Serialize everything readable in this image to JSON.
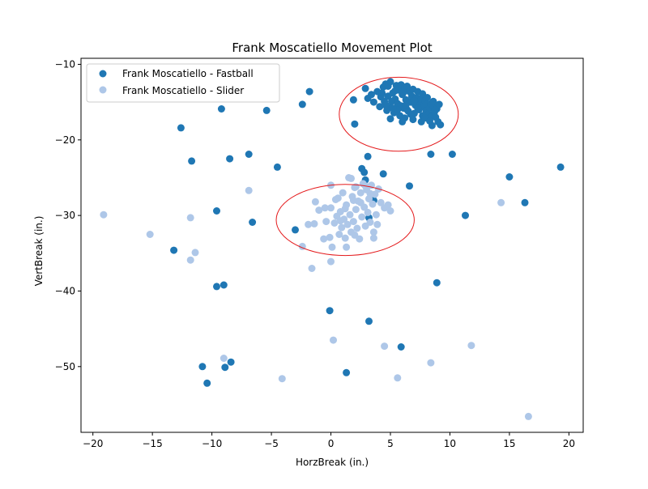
{
  "chart_data": {
    "type": "scatter",
    "title": "Frank Moscatiello Movement Plot",
    "xlabel": "HorzBreak (in.)",
    "ylabel": "VertBreak (in.)",
    "xlim": [
      -21,
      21.2
    ],
    "ylim": [
      -58.7,
      -9.2
    ],
    "xticks": [
      -20,
      -15,
      -10,
      -5,
      0,
      5,
      10,
      15,
      20
    ],
    "yticks": [
      -10,
      -20,
      -30,
      -40,
      -50
    ],
    "grid": false,
    "legend_position": "upper-left",
    "colors": {
      "fastball": "#1f77b4",
      "slider": "#aec7e8",
      "ellipse": "#e41a1c"
    },
    "series": [
      {
        "name": "Frank Moscatiello - Fastball",
        "color": "#1f77b4",
        "points": [
          [
            -9.2,
            -15.9
          ],
          [
            -12.6,
            -18.4
          ],
          [
            -11.7,
            -22.8
          ],
          [
            -5.4,
            -16.1
          ],
          [
            -2.4,
            -15.3
          ],
          [
            -1.8,
            -13.6
          ],
          [
            -8.5,
            -22.5
          ],
          [
            -6.9,
            -21.9
          ],
          [
            -4.5,
            -23.6
          ],
          [
            -9.6,
            -29.4
          ],
          [
            -6.6,
            -30.9
          ],
          [
            -3.0,
            -31.9
          ],
          [
            -13.2,
            -34.6
          ],
          [
            -9.6,
            -39.4
          ],
          [
            -9.0,
            -39.2
          ],
          [
            -0.1,
            -42.6
          ],
          [
            3.2,
            -44.0
          ],
          [
            -10.8,
            -50.0
          ],
          [
            -10.4,
            -52.2
          ],
          [
            -8.9,
            -50.1
          ],
          [
            -8.4,
            -49.4
          ],
          [
            1.3,
            -50.8
          ],
          [
            5.9,
            -47.4
          ],
          [
            8.9,
            -38.9
          ],
          [
            11.3,
            -30.0
          ],
          [
            16.3,
            -28.3
          ],
          [
            15.0,
            -24.9
          ],
          [
            19.3,
            -23.6
          ],
          [
            10.2,
            -21.9
          ],
          [
            8.4,
            -21.9
          ],
          [
            6.6,
            -26.1
          ],
          [
            4.4,
            -24.5
          ],
          [
            3.1,
            -22.2
          ],
          [
            2.6,
            -23.8
          ],
          [
            2.8,
            -24.3
          ],
          [
            2.9,
            -25.3
          ],
          [
            3.6,
            -28.0
          ],
          [
            3.2,
            -30.3
          ],
          [
            1.9,
            -14.7
          ],
          [
            2.0,
            -17.9
          ],
          [
            2.9,
            -13.2
          ],
          [
            3.1,
            -14.5
          ],
          [
            3.6,
            -15.0
          ],
          [
            3.9,
            -13.6
          ],
          [
            4.2,
            -14.3
          ],
          [
            4.4,
            -13.0
          ],
          [
            4.6,
            -12.6
          ],
          [
            4.8,
            -12.9
          ],
          [
            5.0,
            -12.3
          ],
          [
            5.2,
            -13.8
          ],
          [
            5.4,
            -14.6
          ],
          [
            5.5,
            -12.8
          ],
          [
            5.6,
            -15.2
          ],
          [
            5.7,
            -13.4
          ],
          [
            5.9,
            -12.7
          ],
          [
            6.0,
            -14.0
          ],
          [
            6.1,
            -15.8
          ],
          [
            6.2,
            -13.1
          ],
          [
            6.3,
            -14.7
          ],
          [
            6.4,
            -12.9
          ],
          [
            6.5,
            -16.2
          ],
          [
            6.6,
            -13.6
          ],
          [
            6.7,
            -15.0
          ],
          [
            6.8,
            -14.2
          ],
          [
            6.9,
            -13.3
          ],
          [
            7.0,
            -16.5
          ],
          [
            7.1,
            -15.4
          ],
          [
            7.2,
            -14.4
          ],
          [
            7.3,
            -13.6
          ],
          [
            7.4,
            -16.0
          ],
          [
            7.5,
            -15.1
          ],
          [
            7.6,
            -14.6
          ],
          [
            7.7,
            -16.8
          ],
          [
            7.8,
            -15.6
          ],
          [
            7.9,
            -14.8
          ],
          [
            8.0,
            -16.2
          ],
          [
            8.1,
            -15.3
          ],
          [
            8.2,
            -16.6
          ],
          [
            8.3,
            -15.8
          ],
          [
            8.4,
            -15.2
          ],
          [
            8.5,
            -16.9
          ],
          [
            8.6,
            -15.5
          ],
          [
            8.7,
            -16.3
          ],
          [
            8.8,
            -17.0
          ],
          [
            8.9,
            -15.9
          ],
          [
            9.0,
            -17.6
          ],
          [
            9.1,
            -15.3
          ],
          [
            9.2,
            -18.0
          ],
          [
            8.5,
            -18.1
          ],
          [
            5.3,
            -16.4
          ],
          [
            4.9,
            -15.7
          ],
          [
            4.5,
            -14.9
          ],
          [
            5.8,
            -16.8
          ],
          [
            6.2,
            -17.1
          ],
          [
            5.0,
            -17.2
          ],
          [
            4.7,
            -16.1
          ],
          [
            6.9,
            -17.3
          ],
          [
            7.6,
            -17.6
          ],
          [
            4.1,
            -15.6
          ],
          [
            3.4,
            -14.0
          ],
          [
            5.1,
            -14.9
          ],
          [
            5.9,
            -15.5
          ],
          [
            6.4,
            -16.0
          ],
          [
            7.0,
            -14.8
          ],
          [
            6.1,
            -13.7
          ],
          [
            5.4,
            -13.5
          ],
          [
            4.3,
            -13.8
          ],
          [
            7.7,
            -13.9
          ],
          [
            8.1,
            -14.4
          ],
          [
            8.6,
            -14.9
          ],
          [
            7.3,
            -15.8
          ],
          [
            6.7,
            -16.6
          ],
          [
            4.8,
            -14.2
          ],
          [
            5.6,
            -16.0
          ],
          [
            6.3,
            -15.4
          ],
          [
            7.9,
            -17.1
          ],
          [
            8.3,
            -17.5
          ],
          [
            6.0,
            -17.6
          ],
          [
            5.2,
            -15.8
          ],
          [
            4.6,
            -15.4
          ]
        ]
      },
      {
        "name": "Frank Moscatiello - Slider",
        "color": "#aec7e8",
        "points": [
          [
            -19.1,
            -29.9
          ],
          [
            -15.2,
            -32.5
          ],
          [
            -11.8,
            -30.3
          ],
          [
            -11.8,
            -35.9
          ],
          [
            -11.4,
            -34.9
          ],
          [
            -6.9,
            -26.7
          ],
          [
            -2.4,
            -34.1
          ],
          [
            -1.6,
            -37.0
          ],
          [
            -9.0,
            -48.9
          ],
          [
            -4.1,
            -51.6
          ],
          [
            0.2,
            -46.5
          ],
          [
            0.0,
            -36.1
          ],
          [
            4.5,
            -47.3
          ],
          [
            5.6,
            -51.5
          ],
          [
            8.4,
            -49.5
          ],
          [
            11.8,
            -47.2
          ],
          [
            14.3,
            -28.3
          ],
          [
            16.6,
            -56.6
          ],
          [
            -1.9,
            -31.2
          ],
          [
            -1.4,
            -31.1
          ],
          [
            -1.3,
            -28.2
          ],
          [
            -1.0,
            -29.3
          ],
          [
            -0.6,
            -33.1
          ],
          [
            -0.4,
            -30.8
          ],
          [
            -0.1,
            -32.9
          ],
          [
            0.0,
            -26.0
          ],
          [
            0.0,
            -29.0
          ],
          [
            0.1,
            -34.2
          ],
          [
            0.3,
            -31.0
          ],
          [
            0.5,
            -30.1
          ],
          [
            0.6,
            -27.7
          ],
          [
            0.7,
            -32.5
          ],
          [
            0.8,
            -29.5
          ],
          [
            0.9,
            -31.6
          ],
          [
            1.0,
            -27.0
          ],
          [
            1.1,
            -30.5
          ],
          [
            1.2,
            -33.0
          ],
          [
            1.3,
            -28.6
          ],
          [
            1.4,
            -31.2
          ],
          [
            1.5,
            -25.0
          ],
          [
            1.6,
            -29.9
          ],
          [
            1.7,
            -32.2
          ],
          [
            1.8,
            -27.5
          ],
          [
            1.9,
            -30.8
          ],
          [
            2.0,
            -26.3
          ],
          [
            2.1,
            -29.2
          ],
          [
            2.2,
            -31.7
          ],
          [
            2.3,
            -28.1
          ],
          [
            2.4,
            -33.1
          ],
          [
            2.5,
            -27.0
          ],
          [
            2.6,
            -30.2
          ],
          [
            2.7,
            -25.8
          ],
          [
            2.8,
            -28.9
          ],
          [
            2.9,
            -31.4
          ],
          [
            3.0,
            -26.6
          ],
          [
            3.1,
            -29.6
          ],
          [
            3.2,
            -27.8
          ],
          [
            3.3,
            -30.9
          ],
          [
            3.4,
            -26.0
          ],
          [
            3.5,
            -28.5
          ],
          [
            3.6,
            -33.0
          ],
          [
            3.7,
            -27.2
          ],
          [
            3.8,
            -29.9
          ],
          [
            3.9,
            -31.2
          ],
          [
            4.0,
            -26.5
          ],
          [
            4.2,
            -28.3
          ],
          [
            4.5,
            -29.0
          ],
          [
            4.8,
            -28.6
          ],
          [
            5.0,
            -29.4
          ],
          [
            1.3,
            -34.2
          ],
          [
            2.1,
            -26.2
          ],
          [
            1.7,
            -25.1
          ],
          [
            2.5,
            -28.3
          ],
          [
            0.4,
            -27.9
          ],
          [
            -0.5,
            -29.0
          ],
          [
            3.6,
            -32.2
          ],
          [
            2.0,
            -32.6
          ],
          [
            1.2,
            -29.1
          ],
          [
            0.8,
            -30.7
          ],
          [
            2.9,
            -26.1
          ],
          [
            3.3,
            -27.1
          ],
          [
            1.9,
            -28.0
          ]
        ]
      }
    ],
    "annotations": [
      {
        "type": "ellipse",
        "center": [
          5.7,
          -16.6
        ],
        "width": 10.0,
        "height": 9.8
      },
      {
        "type": "ellipse",
        "center": [
          1.2,
          -30.6
        ],
        "width": 11.6,
        "height": 9.4
      }
    ]
  }
}
